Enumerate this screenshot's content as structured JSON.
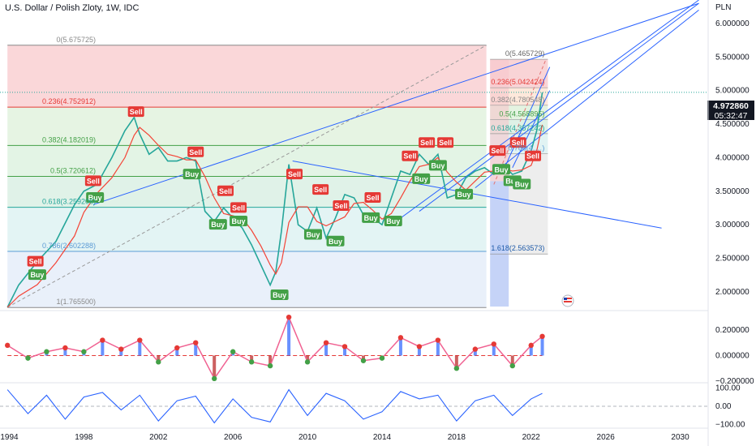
{
  "header": {
    "title": "U.S. Dollar / Polish Zloty, 1W, IDC"
  },
  "axis_unit": "PLN",
  "current_price": {
    "value": "4.972860",
    "countdown": "05:32:47"
  },
  "colors": {
    "up": "#26a69a",
    "down": "#ef5350",
    "buy": "#43a047",
    "sell": "#e53935",
    "trend": "#2962ff",
    "signal": "#f44336",
    "osc": "#2962ff"
  },
  "chart_data": [
    {
      "type": "line",
      "title": "U.S. Dollar / Polish Zloty, 1W, IDC",
      "y_unit": "PLN",
      "xlim": [
        1993.5,
        2031.5
      ],
      "ylim": [
        1.72,
        6.35
      ],
      "x_ticks": [
        "1994",
        "1998",
        "2002",
        "2006",
        "2010",
        "2014",
        "2018",
        "2022",
        "2026",
        "2030"
      ],
      "y_ticks": [
        "6.000000",
        "5.500000",
        "5.000000",
        "4.500000",
        "4.000000",
        "3.500000",
        "3.000000",
        "2.500000",
        "2.000000"
      ],
      "x": [
        1993.9,
        1994.5,
        1995.5,
        1996.5,
        1997.5,
        1998.0,
        1998.7,
        1999.5,
        2000.2,
        2000.7,
        2001.0,
        2001.5,
        2002.0,
        2002.5,
        2003.0,
        2003.5,
        2004.0,
        2004.5,
        2005.0,
        2005.5,
        2006.0,
        2006.5,
        2007.0,
        2007.5,
        2008.0,
        2008.3,
        2008.6,
        2009.0,
        2009.5,
        2010.0,
        2010.5,
        2011.0,
        2011.5,
        2012.0,
        2012.5,
        2013.0,
        2013.5,
        2014.0,
        2014.5,
        2015.0,
        2015.5,
        2016.0,
        2016.5,
        2017.0,
        2017.5,
        2018.0,
        2018.5,
        2019.0,
        2019.5,
        2020.0,
        2020.5,
        2021.0,
        2021.5,
        2022.0,
        2022.3,
        2022.6
      ],
      "close": [
        1.77,
        2.1,
        2.45,
        2.75,
        3.3,
        3.5,
        3.6,
        4.0,
        4.4,
        4.6,
        4.35,
        4.05,
        4.15,
        3.95,
        3.95,
        4.0,
        3.95,
        3.2,
        3.05,
        3.25,
        3.1,
        2.95,
        2.7,
        2.4,
        2.1,
        2.3,
        2.9,
        3.9,
        3.0,
        2.9,
        3.25,
        2.8,
        3.1,
        3.45,
        3.4,
        3.15,
        3.1,
        3.0,
        3.4,
        3.8,
        3.75,
        4.05,
        3.9,
        4.05,
        3.4,
        3.45,
        3.7,
        3.8,
        3.85,
        3.75,
        3.9,
        3.75,
        3.8,
        4.1,
        4.4,
        4.97
      ],
      "fib_levels": [
        {
          "label": "0(5.675725)",
          "value": 5.675725
        },
        {
          "label": "0.236(4.752912)",
          "value": 4.752912
        },
        {
          "label": "0.382(4.182019)",
          "value": 4.182019
        },
        {
          "label": "0.5(3.720612)",
          "value": 3.720612
        },
        {
          "label": "0.618(3.259206)",
          "value": 3.259206
        },
        {
          "label": "0.786(2.602288)",
          "value": 2.602288
        },
        {
          "label": "1(1.765500)",
          "value": 1.7655
        }
      ],
      "fib_levels_recent": [
        {
          "label": "0(5.465729)",
          "value": 5.465729
        },
        {
          "label": "0.236(5.042424)",
          "value": 5.042424
        },
        {
          "label": "0.382(4.780548)",
          "value": 4.780548
        },
        {
          "label": "0.5(4.568895)",
          "value": 4.568895
        },
        {
          "label": "0.618(4.357242)",
          "value": 4.357242
        },
        {
          "label": "0.786(4.…)",
          "value": 4.06
        },
        {
          "label": "1.618(2.563573)",
          "value": 2.563573
        }
      ],
      "signals": [
        {
          "type": "Sell",
          "x": 1995.4,
          "y": 2.45
        },
        {
          "type": "Buy",
          "x": 1995.5,
          "y": 2.25
        },
        {
          "type": "Sell",
          "x": 1998.5,
          "y": 3.65
        },
        {
          "type": "Buy",
          "x": 1998.6,
          "y": 3.4
        },
        {
          "type": "Sell",
          "x": 2000.8,
          "y": 4.68
        },
        {
          "type": "Buy",
          "x": 2003.8,
          "y": 3.75
        },
        {
          "type": "Sell",
          "x": 2004.0,
          "y": 4.08
        },
        {
          "type": "Sell",
          "x": 2005.6,
          "y": 3.5
        },
        {
          "type": "Sell",
          "x": 2006.3,
          "y": 3.25
        },
        {
          "type": "Buy",
          "x": 2005.2,
          "y": 3.0
        },
        {
          "type": "Buy",
          "x": 2006.3,
          "y": 3.05
        },
        {
          "type": "Buy",
          "x": 2008.5,
          "y": 1.95
        },
        {
          "type": "Sell",
          "x": 2009.3,
          "y": 3.75
        },
        {
          "type": "Sell",
          "x": 2010.7,
          "y": 3.52
        },
        {
          "type": "Sell",
          "x": 2011.8,
          "y": 3.28
        },
        {
          "type": "Buy",
          "x": 2010.3,
          "y": 2.85
        },
        {
          "type": "Buy",
          "x": 2011.5,
          "y": 2.75
        },
        {
          "type": "Sell",
          "x": 2013.5,
          "y": 3.4
        },
        {
          "type": "Buy",
          "x": 2013.4,
          "y": 3.1
        },
        {
          "type": "Buy",
          "x": 2014.6,
          "y": 3.05
        },
        {
          "type": "Sell",
          "x": 2015.5,
          "y": 4.02
        },
        {
          "type": "Buy",
          "x": 2016.1,
          "y": 3.68
        },
        {
          "type": "Sell",
          "x": 2016.4,
          "y": 4.22
        },
        {
          "type": "Sell",
          "x": 2017.4,
          "y": 4.22
        },
        {
          "type": "Buy",
          "x": 2017.0,
          "y": 3.88
        },
        {
          "type": "Buy",
          "x": 2018.4,
          "y": 3.45
        },
        {
          "type": "Sell",
          "x": 2020.2,
          "y": 4.1
        },
        {
          "type": "Buy",
          "x": 2020.4,
          "y": 3.82
        },
        {
          "type": "Sell",
          "x": 2021.3,
          "y": 4.22
        },
        {
          "type": "Buy",
          "x": 2021.0,
          "y": 3.65
        },
        {
          "type": "Buy",
          "x": 2021.5,
          "y": 3.6
        },
        {
          "type": "Sell",
          "x": 2022.1,
          "y": 4.02
        }
      ],
      "trendlines": [
        {
          "x": [
            1998.5,
            2031.0
          ],
          "y": [
            3.3,
            6.3
          ]
        },
        {
          "x": [
            2015.0,
            2031.0
          ],
          "y": [
            3.1,
            6.35
          ]
        },
        {
          "x": [
            2016.0,
            2031.0
          ],
          "y": [
            3.2,
            6.3
          ]
        },
        {
          "x": [
            2019.0,
            2031.0
          ],
          "y": [
            3.55,
            6.2
          ]
        },
        {
          "x": [
            2009.2,
            2029.0
          ],
          "y": [
            3.95,
            2.95
          ]
        },
        {
          "x": [
            2020.5,
            2023.0
          ],
          "y": [
            3.8,
            5.35
          ]
        },
        {
          "x": [
            2021.0,
            2023.0
          ],
          "y": [
            3.85,
            5.0
          ]
        }
      ]
    },
    {
      "type": "line",
      "ylim": [
        -0.2,
        0.32
      ],
      "y_ticks": [
        "0.200000",
        "0.000000",
        "−0.200000"
      ],
      "x": [
        1993.9,
        1995,
        1996,
        1997,
        1998,
        1999,
        2000,
        2001,
        2002,
        2003,
        2004,
        2005,
        2006,
        2007,
        2008,
        2009,
        2010,
        2011,
        2012,
        2013,
        2014,
        2015,
        2016,
        2017,
        2018,
        2019,
        2020,
        2021,
        2022,
        2022.6
      ],
      "values": [
        0.08,
        -0.02,
        0.03,
        0.06,
        0.03,
        0.12,
        0.05,
        0.12,
        -0.05,
        0.06,
        0.1,
        -0.18,
        0.03,
        -0.05,
        -0.08,
        0.3,
        -0.05,
        0.1,
        0.07,
        -0.04,
        -0.02,
        0.14,
        0.07,
        0.12,
        -0.1,
        0.05,
        0.09,
        -0.08,
        0.08,
        0.15
      ]
    },
    {
      "type": "line",
      "ylim": [
        -110,
        110
      ],
      "y_ticks": [
        "100.00",
        "0.00",
        "−100.00"
      ],
      "x": [
        1993.9,
        1995,
        1996,
        1997,
        1998,
        1999,
        2000,
        2001,
        2002,
        2003,
        2004,
        2005,
        2006,
        2007,
        2008,
        2009,
        2010,
        2011,
        2012,
        2013,
        2014,
        2015,
        2016,
        2017,
        2018,
        2019,
        2020,
        2021,
        2022,
        2022.6
      ],
      "values": [
        90,
        -40,
        60,
        -70,
        50,
        75,
        -20,
        60,
        -80,
        30,
        55,
        -90,
        40,
        -60,
        -85,
        90,
        -50,
        70,
        30,
        -70,
        -30,
        80,
        40,
        60,
        -80,
        30,
        60,
        -50,
        40,
        70
      ]
    }
  ]
}
